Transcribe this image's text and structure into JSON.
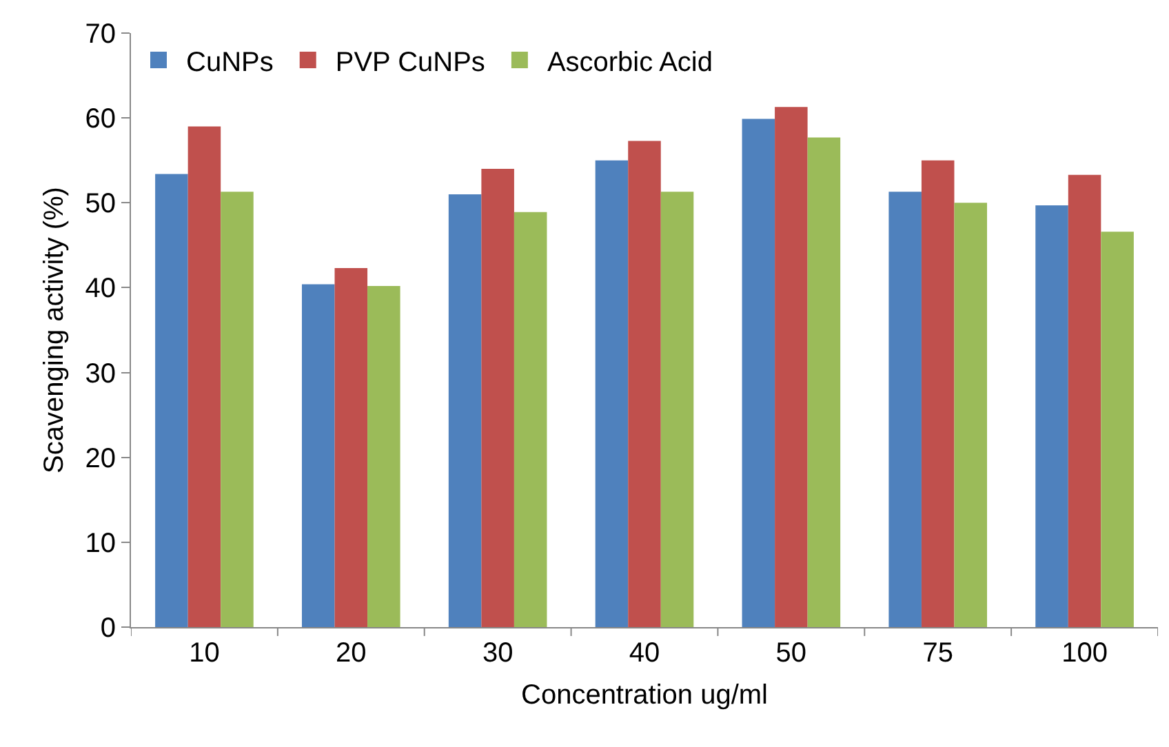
{
  "chart_data": {
    "type": "bar",
    "xlabel": "Concentration ug/ml",
    "ylabel": "Scavenging activity (%)",
    "categories": [
      "10",
      "20",
      "30",
      "40",
      "50",
      "75",
      "100"
    ],
    "series": [
      {
        "name": "CuNPs",
        "color": "#4f81bd",
        "values": [
          53.4,
          40.4,
          51,
          55,
          59.9,
          51.3,
          49.7
        ]
      },
      {
        "name": "PVP CuNPs",
        "color": "#c0504d",
        "values": [
          59,
          42.3,
          54,
          57.3,
          61.3,
          55,
          53.3
        ]
      },
      {
        "name": "Ascorbic Acid",
        "color": "#9bbb59",
        "values": [
          51.3,
          40.2,
          48.9,
          51.3,
          57.7,
          50,
          46.6
        ]
      }
    ],
    "ylim": [
      0,
      70
    ],
    "yticks": [
      0,
      10,
      20,
      30,
      40,
      50,
      60,
      70
    ],
    "grid": false,
    "legend": "top left"
  }
}
